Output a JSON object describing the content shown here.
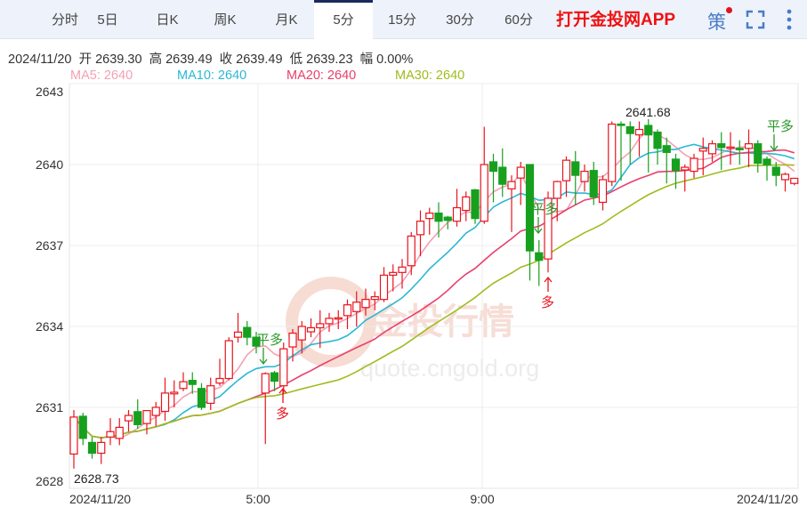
{
  "tabs": [
    {
      "label": "分时"
    },
    {
      "label": "5日"
    },
    {
      "label": "日K"
    },
    {
      "label": "周K"
    },
    {
      "label": "月K"
    },
    {
      "label": "5分",
      "active": true
    },
    {
      "label": "15分"
    },
    {
      "label": "30分"
    },
    {
      "label": "60分"
    }
  ],
  "toolbar": {
    "app_link": "打开金投网APP",
    "strategy": "策",
    "strategy_icon": "strategy-icon",
    "fullscreen_icon": "fullscreen-icon",
    "more_icon": "more-vertical-icon"
  },
  "info": {
    "date": "2024/11/20",
    "open_label": "开",
    "open": "2639.30",
    "high_label": "高",
    "high": "2639.49",
    "close_label": "收",
    "close": "2639.49",
    "low_label": "低",
    "low": "2639.23",
    "change_label": "幅",
    "change": "0.00%"
  },
  "ma_legend": [
    {
      "label": "MA5: 2640",
      "color": "#f4a0b4"
    },
    {
      "label": "MA10: 2640",
      "color": "#2bb8d4"
    },
    {
      "label": "MA20: 2640",
      "color": "#e8406c"
    },
    {
      "label": "MA30: 2640",
      "color": "#9ebc1e"
    }
  ],
  "watermark": {
    "text": "金投行情",
    "url": "quote.cngold.org"
  },
  "chart_data": {
    "type": "candlestick",
    "ylim": [
      2628,
      2643
    ],
    "yticks": [
      "2643",
      "2640",
      "2637",
      "2634",
      "2631",
      "2628"
    ],
    "xticks": [
      "2024/11/20",
      "5:00",
      "9:00",
      "2024/11/20"
    ],
    "grid": true,
    "colors": {
      "up": "#e8141e",
      "down": "#16a01e"
    },
    "max_label": "2641.68",
    "min_label": "2628.73",
    "signals": [
      {
        "text": "平多",
        "color": "#2a9a2a",
        "dir": "down"
      },
      {
        "text": "多",
        "color": "#e8141e",
        "dir": "up"
      },
      {
        "text": "平多",
        "color": "#2a9a2a",
        "dir": "down"
      },
      {
        "text": "多",
        "color": "#e8141e",
        "dir": "up"
      },
      {
        "text": "平多",
        "color": "#2a9a2a",
        "dir": "down"
      }
    ],
    "ohlc": [
      [
        2629.27,
        2630.9,
        2628.73,
        2630.64
      ],
      [
        2630.67,
        2630.8,
        2629.6,
        2629.85
      ],
      [
        2629.7,
        2629.9,
        2629.1,
        2629.3
      ],
      [
        2629.3,
        2629.9,
        2628.9,
        2629.7
      ],
      [
        2629.9,
        2630.6,
        2629.6,
        2630.1
      ],
      [
        2629.85,
        2630.6,
        2629.6,
        2630.26
      ],
      [
        2630.5,
        2630.9,
        2630.1,
        2630.7
      ],
      [
        2630.84,
        2631.3,
        2630.2,
        2630.36
      ],
      [
        2630.4,
        2630.9,
        2630.0,
        2630.88
      ],
      [
        2630.7,
        2631.2,
        2630.3,
        2631.0
      ],
      [
        2630.85,
        2632.1,
        2630.5,
        2631.53
      ],
      [
        2631.5,
        2632.0,
        2631.0,
        2631.56
      ],
      [
        2631.7,
        2632.3,
        2631.6,
        2631.95
      ],
      [
        2632.0,
        2632.3,
        2631.5,
        2631.85
      ],
      [
        2631.7,
        2631.9,
        2630.9,
        2631.0
      ],
      [
        2631.15,
        2632.1,
        2630.9,
        2631.8
      ],
      [
        2631.9,
        2632.8,
        2631.8,
        2632.07
      ],
      [
        2632.07,
        2633.6,
        2632.0,
        2633.47
      ],
      [
        2633.6,
        2634.5,
        2633.4,
        2633.79
      ],
      [
        2633.96,
        2634.2,
        2633.3,
        2633.6
      ],
      [
        2633.6,
        2633.8,
        2633.0,
        2633.27
      ],
      [
        2631.53,
        2632.3,
        2629.64,
        2632.25
      ],
      [
        2632.28,
        2632.35,
        2631.6,
        2631.97
      ],
      [
        2631.8,
        2633.4,
        2631.5,
        2633.17
      ],
      [
        2633.24,
        2633.9,
        2632.7,
        2633.75
      ],
      [
        2633.5,
        2634.2,
        2633.0,
        2634.0
      ],
      [
        2633.8,
        2634.3,
        2633.6,
        2633.95
      ],
      [
        2633.95,
        2634.6,
        2633.2,
        2634.1
      ],
      [
        2634.1,
        2634.5,
        2633.8,
        2634.3
      ],
      [
        2634.3,
        2634.6,
        2633.9,
        2634.32
      ],
      [
        2634.4,
        2635.0,
        2633.9,
        2634.8
      ],
      [
        2634.55,
        2635.3,
        2634.0,
        2634.9
      ],
      [
        2634.7,
        2635.4,
        2634.4,
        2635.0
      ],
      [
        2635.0,
        2635.3,
        2634.6,
        2635.1
      ],
      [
        2635.0,
        2636.2,
        2634.9,
        2635.9
      ],
      [
        2635.9,
        2636.3,
        2635.3,
        2636.0
      ],
      [
        2636.0,
        2636.5,
        2635.4,
        2636.2
      ],
      [
        2636.25,
        2637.5,
        2635.9,
        2637.35
      ],
      [
        2637.4,
        2638.3,
        2636.6,
        2637.9
      ],
      [
        2638.0,
        2638.4,
        2637.4,
        2638.2
      ],
      [
        2638.2,
        2638.6,
        2637.3,
        2637.9
      ],
      [
        2638.05,
        2638.1,
        2637.6,
        2637.93
      ],
      [
        2637.9,
        2639.1,
        2637.7,
        2638.4
      ],
      [
        2638.3,
        2639.0,
        2637.9,
        2638.8
      ],
      [
        2639.06,
        2639.1,
        2637.8,
        2638.0
      ],
      [
        2637.9,
        2641.4,
        2637.8,
        2640.0
      ],
      [
        2640.1,
        2640.4,
        2638.6,
        2639.75
      ],
      [
        2639.9,
        2640.6,
        2638.8,
        2639.27
      ],
      [
        2639.1,
        2639.6,
        2637.5,
        2639.37
      ],
      [
        2639.5,
        2640.1,
        2638.5,
        2639.9
      ],
      [
        2640.0,
        2640.0,
        2635.7,
        2636.8
      ],
      [
        2636.73,
        2637.2,
        2635.5,
        2636.45
      ],
      [
        2636.5,
        2639.0,
        2636.0,
        2638.75
      ],
      [
        2638.75,
        2639.4,
        2637.9,
        2639.37
      ],
      [
        2639.4,
        2640.3,
        2638.8,
        2640.16
      ],
      [
        2640.1,
        2640.5,
        2638.5,
        2639.6
      ],
      [
        2639.37,
        2640.0,
        2639.0,
        2639.75
      ],
      [
        2639.78,
        2640.1,
        2638.5,
        2638.8
      ],
      [
        2638.6,
        2639.6,
        2638.3,
        2639.44
      ],
      [
        2639.37,
        2641.6,
        2639.2,
        2641.5
      ],
      [
        2641.5,
        2641.6,
        2639.4,
        2641.45
      ],
      [
        2641.4,
        2641.6,
        2640.0,
        2641.15
      ],
      [
        2641.1,
        2641.6,
        2640.3,
        2641.3
      ],
      [
        2641.45,
        2641.68,
        2639.7,
        2641.1
      ],
      [
        2641.2,
        2641.3,
        2640.0,
        2640.6
      ],
      [
        2640.7,
        2641.0,
        2639.3,
        2640.45
      ],
      [
        2640.2,
        2640.4,
        2639.1,
        2639.78
      ],
      [
        2639.8,
        2640.0,
        2639.0,
        2639.9
      ],
      [
        2639.75,
        2640.4,
        2639.5,
        2640.23
      ],
      [
        2640.5,
        2641.0,
        2639.6,
        2640.6
      ],
      [
        2640.4,
        2640.9,
        2640.1,
        2640.77
      ],
      [
        2640.77,
        2641.2,
        2639.8,
        2640.63
      ],
      [
        2640.6,
        2641.2,
        2640.0,
        2640.65
      ],
      [
        2640.6,
        2640.9,
        2640.0,
        2640.55
      ],
      [
        2640.6,
        2641.3,
        2639.9,
        2640.77
      ],
      [
        2640.77,
        2640.9,
        2639.7,
        2640.05
      ],
      [
        2640.2,
        2640.3,
        2639.4,
        2639.99
      ],
      [
        2639.9,
        2640.1,
        2639.2,
        2639.6
      ],
      [
        2639.44,
        2639.7,
        2639.0,
        2639.64
      ],
      [
        2639.3,
        2639.49,
        2639.23,
        2639.49
      ]
    ],
    "ma_periods": [
      5,
      10,
      20,
      30
    ]
  }
}
